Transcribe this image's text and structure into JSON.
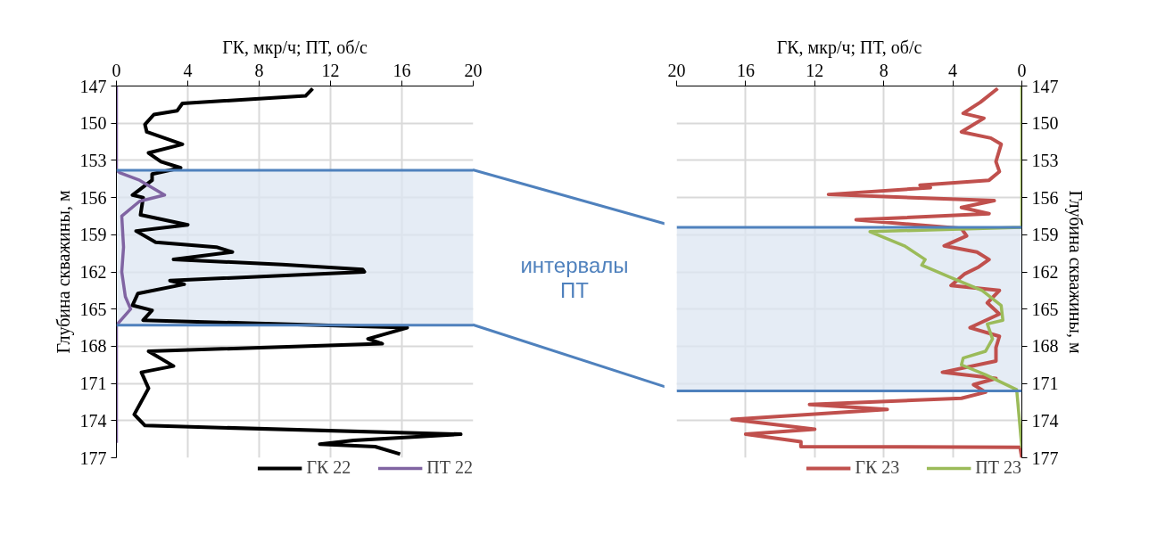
{
  "chart_data": [
    {
      "type": "line",
      "orientation": "horizontal",
      "xlabel": "ГК, мкр/ч; ПТ, об/с",
      "ylabel": "Глубина скважины, м",
      "xlim": [
        0,
        20
      ],
      "xticks": [
        0,
        4,
        8,
        12,
        16,
        20
      ],
      "ylim": [
        177,
        147
      ],
      "yticks": [
        147,
        150,
        153,
        156,
        159,
        162,
        165,
        168,
        171,
        174,
        177
      ],
      "grid": true,
      "legend": "bottom",
      "annotations": [
        "интервалы ПТ"
      ],
      "bands": [
        {
          "axis": "y",
          "from": 153.8,
          "to": 166.3,
          "color": "#dce6f2"
        }
      ],
      "ref_lines": [
        {
          "axis": "y",
          "value": 153.8,
          "color": "#4f81bd"
        },
        {
          "axis": "y",
          "value": 166.3,
          "color": "#4f81bd"
        }
      ],
      "series": [
        {
          "name": "ГК 22",
          "color": "#000000",
          "x": [
            147.2,
            147.8,
            148.4,
            149.0,
            149.3,
            150.1,
            150.7,
            151.7,
            152.4,
            153.1,
            153.6,
            154.1,
            154.6,
            155.8,
            156.0,
            157.4,
            158.2,
            158.7,
            159.6,
            160.0,
            160.4,
            161.0,
            161.4,
            161.8,
            162.0,
            162.7,
            163.0,
            163.75,
            164.7,
            165.1,
            165.9,
            166.5,
            167.4,
            167.8,
            168.4,
            169.6,
            170.1,
            171.4,
            173.5,
            174.4,
            175.1,
            175.6,
            175.9,
            176.1,
            176.7
          ],
          "values": [
            11.0,
            10.6,
            3.7,
            3.4,
            2.1,
            1.6,
            1.7,
            3.7,
            1.8,
            2.5,
            3.6,
            2.0,
            2.0,
            0.9,
            1.5,
            1.35,
            4.0,
            1.1,
            2.2,
            5.6,
            6.5,
            3.2,
            9.3,
            13.8,
            13.9,
            3.0,
            3.8,
            1.2,
            0.9,
            2.0,
            1.5,
            16.3,
            14.1,
            14.9,
            1.8,
            3.2,
            1.4,
            1.8,
            1.0,
            1.6,
            19.3,
            13.3,
            11.4,
            14.5,
            15.9
          ]
        },
        {
          "name": "ПТ 22",
          "color": "#8064a2",
          "x": [
            147.0,
            153.8,
            154.0,
            154.6,
            155.8,
            156.3,
            157.5,
            160.0,
            162.0,
            164.0,
            165.0,
            166.3,
            175.8
          ],
          "values": [
            0,
            0,
            0.2,
            1.3,
            2.7,
            1.3,
            0.3,
            0.4,
            0.3,
            0.5,
            0.8,
            0,
            0
          ]
        }
      ]
    },
    {
      "type": "line",
      "orientation": "horizontal",
      "xlabel": "ГК, мкр/ч; ПТ, об/с",
      "ylabel": "Глубина скважины, м",
      "xlim": [
        20,
        0
      ],
      "xticks": [
        20,
        16,
        12,
        8,
        4,
        0
      ],
      "ylim": [
        177,
        147
      ],
      "yticks": [
        147,
        150,
        153,
        156,
        159,
        162,
        165,
        168,
        171,
        174,
        177
      ],
      "grid": true,
      "legend": "bottom",
      "bands": [
        {
          "axis": "y",
          "from": 158.4,
          "to": 171.6,
          "color": "#dce6f2"
        }
      ],
      "ref_lines": [
        {
          "axis": "y",
          "value": 158.4,
          "color": "#4f81bd"
        },
        {
          "axis": "y",
          "value": 171.6,
          "color": "#4f81bd"
        }
      ],
      "series": [
        {
          "name": "ГК 23",
          "color": "#c0504d",
          "x": [
            147.2,
            148.3,
            149.2,
            149.6,
            150.7,
            151.2,
            151.7,
            153.1,
            153.9,
            154.6,
            155.0,
            155.2,
            155.75,
            156.25,
            156.8,
            157.3,
            157.8,
            158.5,
            159.1,
            159.9,
            160.4,
            161.0,
            161.6,
            162.15,
            163.1,
            163.5,
            164.5,
            165.4,
            166.5,
            167.2,
            168.1,
            169.2,
            170.1,
            170.6,
            171.1,
            171.7,
            172.2,
            172.7,
            173.1,
            173.9,
            174.7,
            175.1,
            175.7,
            176.1,
            176.15,
            177.0
          ],
          "values": [
            1.4,
            2.4,
            3.4,
            2.2,
            3.5,
            1.8,
            1.2,
            1.5,
            1.3,
            1.9,
            5.9,
            5.3,
            11.2,
            1.6,
            3.5,
            1.9,
            9.6,
            3.5,
            3.2,
            4.5,
            2.6,
            1.9,
            2.5,
            3.3,
            4.1,
            1.3,
            2.0,
            1.3,
            3.0,
            1.3,
            1.5,
            1.5,
            4.6,
            1.5,
            2.8,
            2.1,
            3.5,
            12.3,
            7.8,
            16.8,
            12.0,
            16.0,
            12.8,
            12.8,
            0.1,
            0
          ]
        },
        {
          "name": "ПТ 23",
          "color": "#9bbb59",
          "x": [
            147.0,
            158.4,
            158.75,
            159.9,
            161.0,
            161.45,
            162.4,
            163.5,
            164.7,
            165.9,
            166.2,
            167.4,
            168.4,
            168.95,
            169.5,
            170.3,
            171.5,
            176.2
          ],
          "values": [
            0,
            0,
            8.8,
            6.8,
            5.6,
            5.8,
            4.2,
            2.3,
            1.2,
            1.1,
            2.0,
            1.7,
            2.1,
            3.4,
            3.5,
            2.1,
            0.3,
            0
          ]
        }
      ]
    }
  ]
}
